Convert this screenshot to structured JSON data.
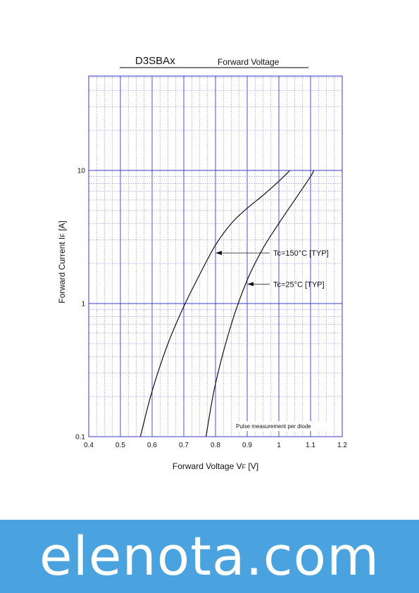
{
  "chart_data": {
    "type": "line",
    "title": "D3SBAx",
    "subtitle": "Forward Voltage",
    "xlabel_main": "Forward Voltage  V",
    "xlabel_sub": "F",
    "xlabel_unit": "  [V]",
    "ylabel_main": "Forward Current  I",
    "ylabel_sub": "F",
    "ylabel_unit": "  [A]",
    "xlim": [
      0.4,
      1.2
    ],
    "ylim": [
      0.1,
      80
    ],
    "y_scale": "log",
    "grid": true,
    "x_ticks": [
      "0.4",
      "0.5",
      "0.6",
      "0.7",
      "0.8",
      "0.9",
      "1",
      "1.1",
      "1.2"
    ],
    "y_ticks": [
      "0.1",
      "1",
      "10"
    ],
    "note": "Pulse measurement per diode",
    "series": [
      {
        "name": "Tc=150°C [TYP]",
        "x": [
          0.563,
          0.6,
          0.65,
          0.7,
          0.75,
          0.8,
          0.85,
          0.9,
          0.95,
          1.0,
          1.035
        ],
        "y": [
          0.1,
          0.22,
          0.5,
          0.95,
          1.65,
          2.75,
          4.0,
          5.2,
          6.5,
          8.3,
          10.0
        ]
      },
      {
        "name": "Tc=25°C [TYP]",
        "x": [
          0.77,
          0.8,
          0.85,
          0.9,
          0.95,
          1.0,
          1.05,
          1.1,
          1.11
        ],
        "y": [
          0.1,
          0.25,
          0.7,
          1.5,
          2.6,
          4.0,
          6.0,
          9.0,
          10.0
        ]
      }
    ],
    "annotations": [
      {
        "label": "Tc=150°C [TYP]",
        "x": 0.8,
        "y": 2.4
      },
      {
        "label": "Tc=25°C [TYP]",
        "x": 0.9,
        "y": 1.4
      }
    ]
  },
  "banner": {
    "text": "elenota.com"
  }
}
